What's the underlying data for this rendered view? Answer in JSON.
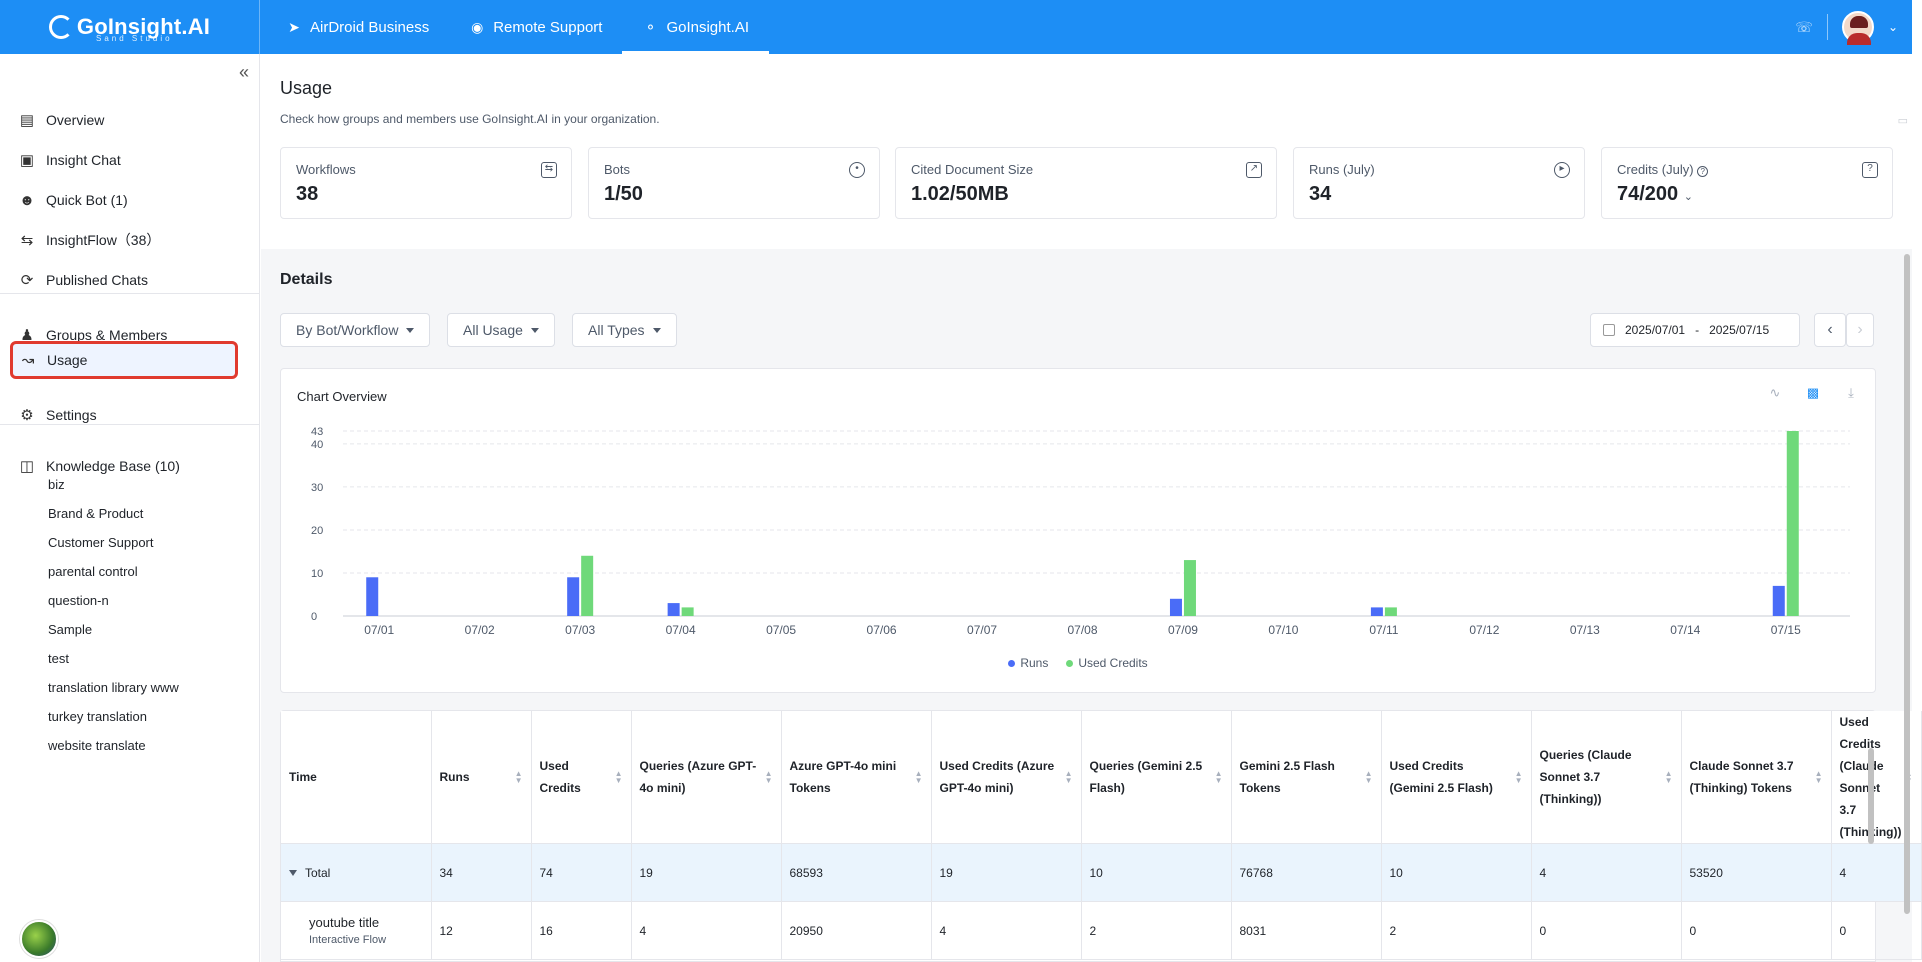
{
  "topbar": {
    "logo_text": "GoInsight.AI",
    "logo_sub": "Sand Studio",
    "tabs": [
      {
        "label": "AirDroid Business",
        "icon": "airdroid-icon"
      },
      {
        "label": "Remote Support",
        "icon": "lifebuoy-icon"
      },
      {
        "label": "GoInsight.AI",
        "icon": "goinsight-icon",
        "active": true
      }
    ]
  },
  "sidebar": {
    "items": [
      {
        "label": "Overview",
        "icon": "overview-icon"
      },
      {
        "label": "Insight Chat",
        "icon": "chat-icon"
      },
      {
        "label": "Quick Bot (1)",
        "icon": "bot-icon"
      },
      {
        "label": "InsightFlow（38）",
        "icon": "flow-icon"
      },
      {
        "label": "Published Chats",
        "icon": "published-icon"
      },
      {
        "label": "Groups & Members",
        "icon": "users-icon"
      },
      {
        "label": "Usage",
        "icon": "usage-icon",
        "selected": true
      },
      {
        "label": "Settings",
        "icon": "gear-icon"
      },
      {
        "label": "Knowledge Base (10)",
        "icon": "book-icon"
      }
    ],
    "knowledge_bases": [
      "biz",
      "Brand & Product",
      "Customer Support",
      "parental control",
      "question-n",
      "Sample",
      "test",
      "translation library www",
      "turkey translation",
      "website translate"
    ]
  },
  "page": {
    "title": "Usage",
    "description": "Check how groups and members use GoInsight.AI in your organization."
  },
  "stats": [
    {
      "label": "Workflows",
      "value": "38",
      "icon": "workflow-icon"
    },
    {
      "label": "Bots",
      "value": "1/50",
      "icon": "bot-icon"
    },
    {
      "label": "Cited Document Size",
      "value": "1.02/50MB",
      "icon": "document-icon"
    },
    {
      "label": "Runs (July)",
      "value": "34",
      "icon": "play-icon"
    },
    {
      "label": "Credits (July)",
      "value": "74/200",
      "icon": "help-icon"
    }
  ],
  "details": {
    "title": "Details",
    "filters": [
      "By Bot/Workflow",
      "All Usage",
      "All Types"
    ],
    "date_start": "2025/07/01",
    "date_sep": "-",
    "date_end": "2025/07/15"
  },
  "chart_data": {
    "type": "bar",
    "title": "Chart Overview",
    "categories": [
      "07/01",
      "07/02",
      "07/03",
      "07/04",
      "07/05",
      "07/06",
      "07/07",
      "07/08",
      "07/09",
      "07/10",
      "07/11",
      "07/12",
      "07/13",
      "07/14",
      "07/15"
    ],
    "series": [
      {
        "name": "Runs",
        "color": "#4a6cf7",
        "values": [
          9,
          0,
          9,
          3,
          0,
          0,
          0,
          0,
          4,
          0,
          2,
          0,
          0,
          0,
          7
        ]
      },
      {
        "name": "Used Credits",
        "color": "#6fd97a",
        "values": [
          0,
          0,
          14,
          2,
          0,
          0,
          0,
          0,
          13,
          0,
          2,
          0,
          0,
          0,
          43
        ]
      }
    ],
    "yticks": [
      0,
      10,
      20,
      30,
      40,
      43
    ],
    "ylim": [
      0,
      43
    ],
    "legend_position": "bottom",
    "grid": true
  },
  "table": {
    "columns": [
      {
        "label": "Time",
        "sortable": false
      },
      {
        "label": "Runs",
        "sortable": true
      },
      {
        "label": "Used Credits",
        "sortable": true
      },
      {
        "label": "Queries (Azure GPT-4o mini)",
        "sortable": true
      },
      {
        "label": "Azure GPT-4o mini Tokens",
        "sortable": true
      },
      {
        "label": "Used Credits (Azure GPT-4o mini)",
        "sortable": true
      },
      {
        "label": "Queries (Gemini 2.5 Flash)",
        "sortable": true
      },
      {
        "label": "Gemini 2.5 Flash Tokens",
        "sortable": true
      },
      {
        "label": "Used Credits (Gemini 2.5 Flash)",
        "sortable": true
      },
      {
        "label": "Queries (Claude Sonnet 3.7 (Thinking))",
        "sortable": true
      },
      {
        "label": "Claude Sonnet 3.7 (Thinking) Tokens",
        "sortable": true
      },
      {
        "label": "Used Credits (Claude Sonnet 3.7 (Thinking))",
        "sortable": true
      }
    ],
    "total": {
      "label": "Total",
      "values": [
        "34",
        "74",
        "19",
        "68593",
        "19",
        "10",
        "76768",
        "10",
        "4",
        "53520",
        "4"
      ]
    },
    "rows": [
      {
        "name": "youtube title",
        "type": "Interactive Flow",
        "values": [
          "12",
          "16",
          "4",
          "20950",
          "4",
          "2",
          "8031",
          "2",
          "0",
          "0",
          "0"
        ]
      }
    ]
  }
}
